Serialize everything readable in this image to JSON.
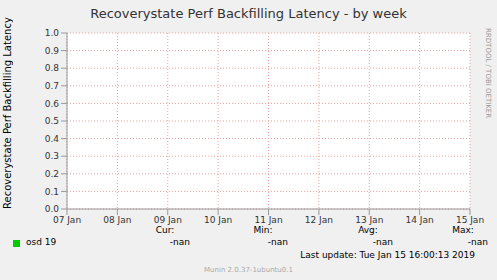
{
  "chart_data": {
    "type": "line",
    "title": "Recoverystate Perf Backfilling Latency - by week",
    "y_label": "Recoverystate Perf Backfilling Latency",
    "categories": [
      "07 Jan",
      "08 Jan",
      "09 Jan",
      "10 Jan",
      "11 Jan",
      "12 Jan",
      "13 Jan",
      "14 Jan",
      "15 Jan"
    ],
    "series": [
      {
        "name": "osd 19",
        "color": "#00cc00",
        "values": [
          null,
          null,
          null,
          null,
          null,
          null,
          null,
          null,
          null
        ],
        "stats": [
          {
            "label": "Cur:",
            "value": "-nan"
          },
          {
            "label": "Min:",
            "value": "-nan"
          },
          {
            "label": "Avg:",
            "value": "-nan"
          },
          {
            "label": "Max:",
            "value": "-nan"
          }
        ]
      }
    ],
    "ylim": [
      0,
      1
    ],
    "yticks": [
      {
        "value": 0,
        "label": "0.0"
      },
      0.1,
      0.2,
      0.3,
      0.4,
      0.5,
      0.6,
      0.7,
      0.8,
      0.9,
      {
        "value": 1,
        "label": "1.0"
      }
    ],
    "grid": true,
    "last_update": "Last update: Tue Jan 15 16:00:13 2019",
    "footer": "Munin 2.0.37-1ubuntu0.1",
    "watermark": "RRDTOOL / TOBI OETIKER"
  }
}
